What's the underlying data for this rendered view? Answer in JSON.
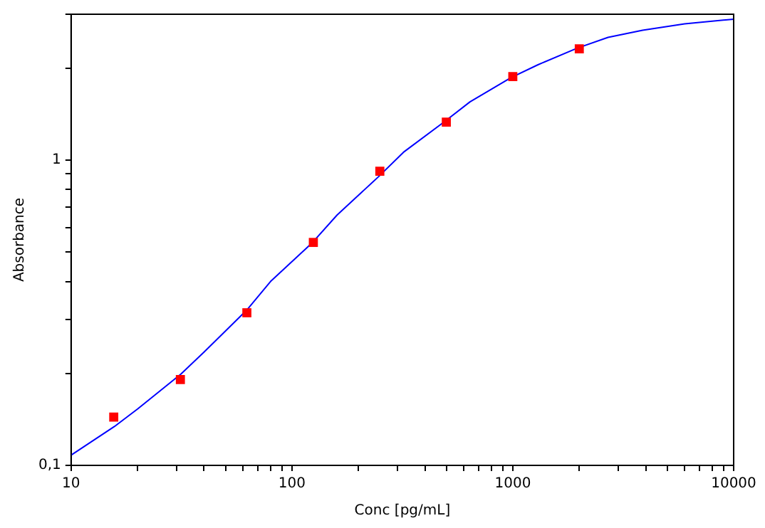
{
  "chart_data": {
    "type": "scatter",
    "xlabel": "Conc [pg/mL]",
    "ylabel": "Absorbance",
    "log": "xy",
    "grid": false,
    "legend": false,
    "marker": "square",
    "xlim": [
      10,
      10000
    ],
    "ylim": [
      0.1,
      3
    ],
    "xticks": [
      10,
      {
        "value": 20,
        "label": null
      },
      {
        "value": 30,
        "label": null
      },
      {
        "value": 40,
        "label": null
      },
      {
        "value": 50,
        "label": null
      },
      {
        "value": 60,
        "label": null
      },
      {
        "value": 70,
        "label": null
      },
      {
        "value": 80,
        "label": null
      },
      {
        "value": 90,
        "label": null
      },
      100,
      {
        "value": 200,
        "label": null
      },
      {
        "value": 300,
        "label": null
      },
      {
        "value": 400,
        "label": null
      },
      {
        "value": 500,
        "label": null
      },
      {
        "value": 600,
        "label": null
      },
      {
        "value": 700,
        "label": null
      },
      {
        "value": 800,
        "label": null
      },
      {
        "value": 900,
        "label": null
      },
      1000,
      {
        "value": 2000,
        "label": null
      },
      {
        "value": 3000,
        "label": null
      },
      {
        "value": 4000,
        "label": null
      },
      {
        "value": 5000,
        "label": null
      },
      {
        "value": 6000,
        "label": null
      },
      {
        "value": 7000,
        "label": null
      },
      {
        "value": 8000,
        "label": null
      },
      {
        "value": 9000,
        "label": null
      },
      10000
    ],
    "yticks": [
      {
        "value": 0.1,
        "label": "0,1"
      },
      {
        "value": 0.2,
        "label": null
      },
      {
        "value": 0.3,
        "label": null
      },
      {
        "value": 0.4,
        "label": null
      },
      {
        "value": 0.5,
        "label": null
      },
      {
        "value": 0.6,
        "label": null
      },
      {
        "value": 0.7,
        "label": null
      },
      {
        "value": 0.8,
        "label": null
      },
      {
        "value": 0.9,
        "label": null
      },
      1,
      {
        "value": 2,
        "label": null
      },
      {
        "value": 3,
        "label": null
      }
    ],
    "series": [
      {
        "type": "line",
        "color": "#0000ff",
        "marker": "none",
        "x": [
          10,
          15.7,
          20,
          31.4,
          40,
          62.3,
          80,
          124,
          160,
          246,
          320,
          494,
          640,
          981,
          1300,
          1950,
          2700,
          3870,
          6000,
          10000
        ],
        "values": [
          0.108,
          0.134,
          0.153,
          0.199,
          0.235,
          0.322,
          0.4,
          0.537,
          0.66,
          0.88,
          1.06,
          1.34,
          1.55,
          1.86,
          2.05,
          2.32,
          2.52,
          2.66,
          2.79,
          2.89
        ]
      },
      {
        "type": "scatter",
        "color": "#ff0000",
        "x": [
          15.6,
          31.25,
          62.5,
          125,
          250,
          500,
          1000,
          2000
        ],
        "values": [
          0.144,
          0.191,
          0.316,
          0.537,
          0.919,
          1.33,
          1.875,
          2.31
        ]
      }
    ]
  }
}
